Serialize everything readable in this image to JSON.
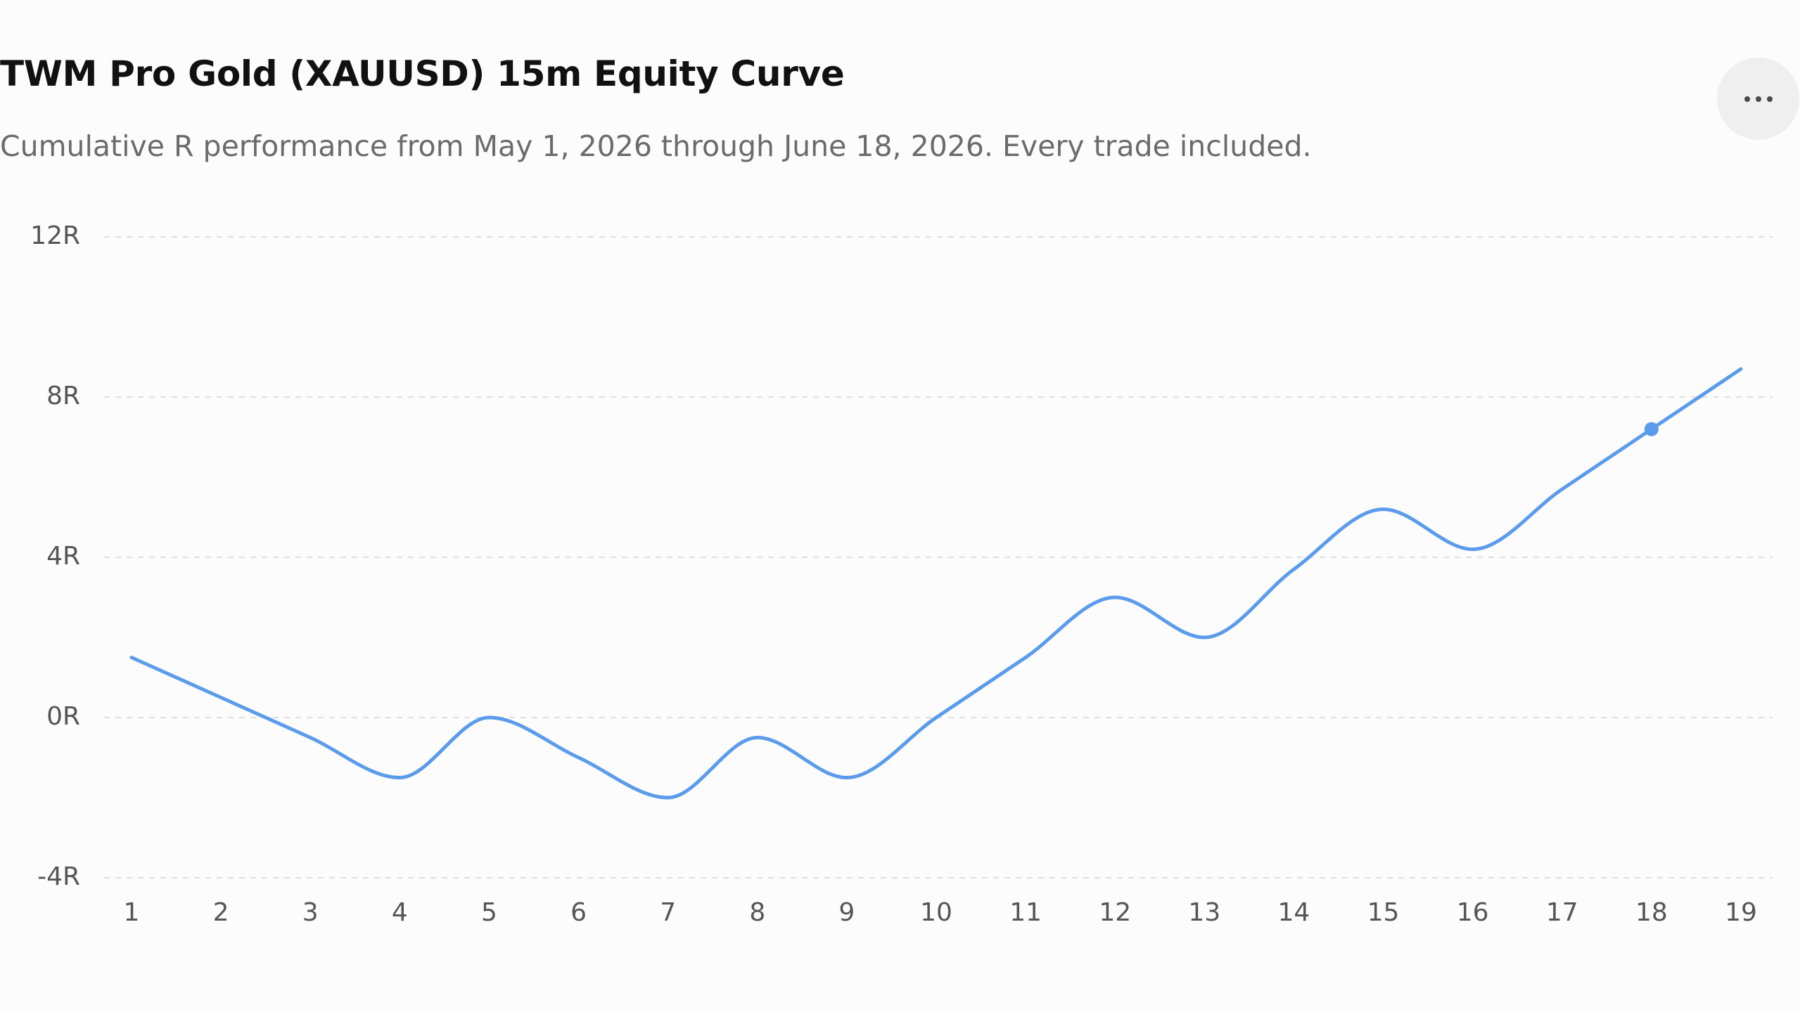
{
  "header": {
    "title": "TWM Pro Gold (XAUUSD) 15m Equity Curve",
    "subtitle": "Cumulative R performance from May 1, 2026 through June 18, 2026. Every trade included.",
    "menu_icon": "more-horizontal-icon"
  },
  "colors": {
    "line": "#5b9bec",
    "grid": "#dedede",
    "axis_text": "#555555",
    "background": "#fcfcfc",
    "menu_button_bg": "#efefef"
  },
  "chart_data": {
    "type": "line",
    "title": "TWM Pro Gold (XAUUSD) 15m Equity Curve",
    "subtitle": "Cumulative R performance from May 1, 2026 through June 18, 2026. Every trade included.",
    "xlabel": "",
    "ylabel": "",
    "x": [
      1,
      2,
      3,
      4,
      5,
      6,
      7,
      8,
      9,
      10,
      11,
      12,
      13,
      14,
      15,
      16,
      17,
      18,
      19
    ],
    "x_tick_labels": [
      "1",
      "2",
      "3",
      "4",
      "5",
      "6",
      "7",
      "8",
      "9",
      "10",
      "11",
      "12",
      "13",
      "14",
      "15",
      "16",
      "17",
      "18",
      "19"
    ],
    "series": [
      {
        "values": [
          1.5,
          0.5,
          -0.5,
          -1.5,
          0.0,
          -1.0,
          -2.0,
          -0.5,
          -1.5,
          0.0,
          1.5,
          3.0,
          2.0,
          3.7,
          5.2,
          4.2,
          5.7,
          7.2,
          8.7
        ]
      }
    ],
    "highlighted_point": {
      "x": 18,
      "y": 7.2
    },
    "y_ticks": [
      12,
      8,
      4,
      0,
      -4
    ],
    "y_tick_labels": [
      "12R",
      "8R",
      "4R",
      "0R",
      "-4R"
    ],
    "ylim": [
      -4,
      12
    ],
    "grid": true,
    "grid_style": "dashed",
    "curve": "smooth",
    "legend": "none"
  }
}
